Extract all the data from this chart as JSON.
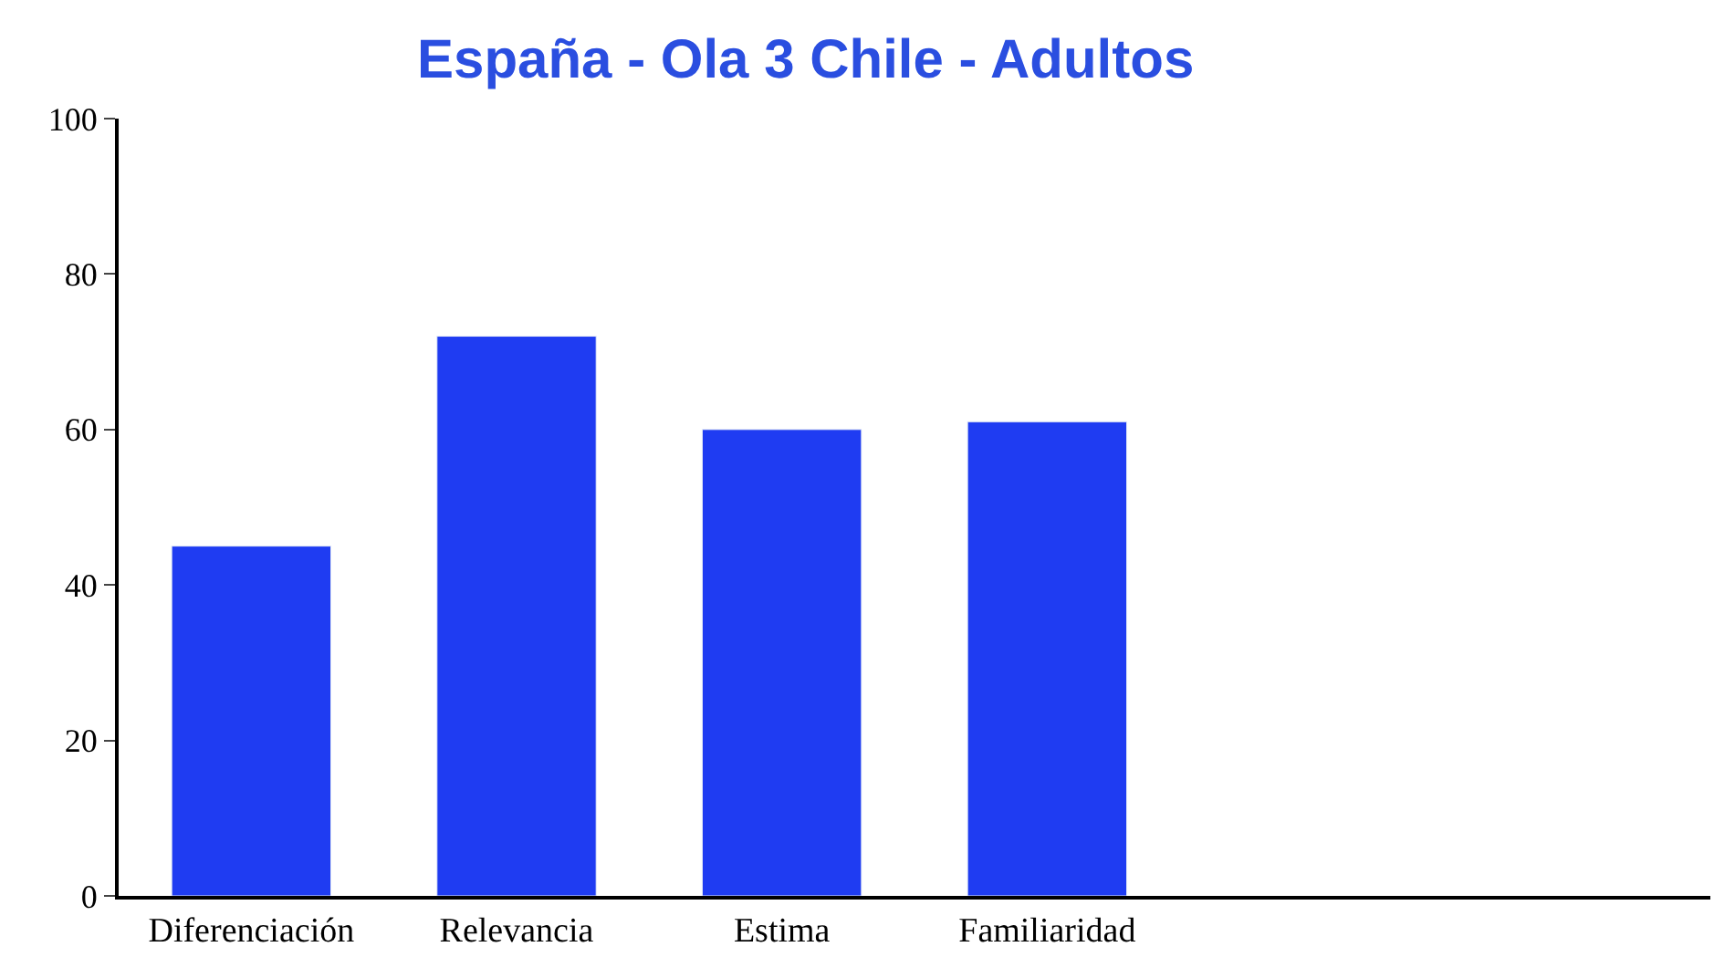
{
  "chart_data": {
    "type": "bar",
    "title": "España - Ola 3 Chile - Adultos",
    "categories": [
      "Diferenciación",
      "Relevancia",
      "Estima",
      "Familiaridad",
      null,
      null
    ],
    "values": [
      45,
      72,
      60,
      61,
      null,
      null
    ],
    "color": "#1f3cf2",
    "ylim": [
      0,
      100
    ],
    "yticks": [
      0,
      20,
      40,
      60,
      80,
      100
    ]
  }
}
